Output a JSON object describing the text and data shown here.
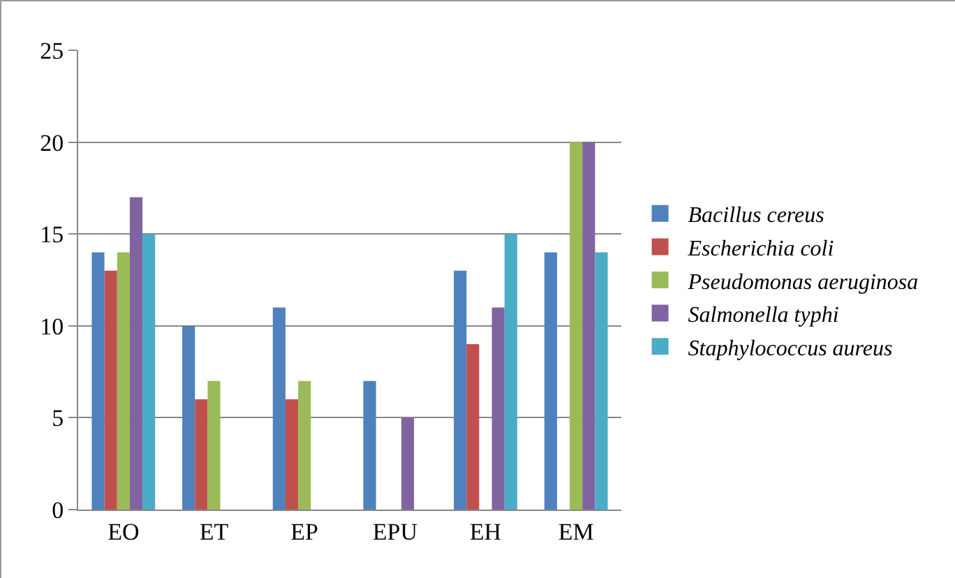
{
  "chart_data": {
    "type": "bar",
    "categories": [
      "EO",
      "ET",
      "EP",
      "EPU",
      "EH",
      "EM"
    ],
    "series": [
      {
        "name": "Bacillus cereus",
        "color": "#4f81bd",
        "values": [
          14,
          10,
          11,
          7,
          13,
          14
        ]
      },
      {
        "name": "Escherichia coli",
        "color": "#c0504d",
        "values": [
          13,
          6,
          6,
          0,
          9,
          0
        ]
      },
      {
        "name": "Pseudomonas aeruginosa",
        "color": "#9bbb59",
        "values": [
          14,
          7,
          7,
          0,
          0,
          20
        ]
      },
      {
        "name": "Salmonella typhi",
        "color": "#8064a2",
        "values": [
          17,
          0,
          0,
          5,
          11,
          20
        ]
      },
      {
        "name": "Staphylococcus aureus",
        "color": "#4bacc6",
        "values": [
          15,
          0,
          0,
          0,
          15,
          14
        ]
      }
    ],
    "ylim": [
      0,
      25
    ],
    "yticks": [
      0,
      5,
      10,
      15,
      20,
      25
    ],
    "grid": "y",
    "legend": "right"
  }
}
